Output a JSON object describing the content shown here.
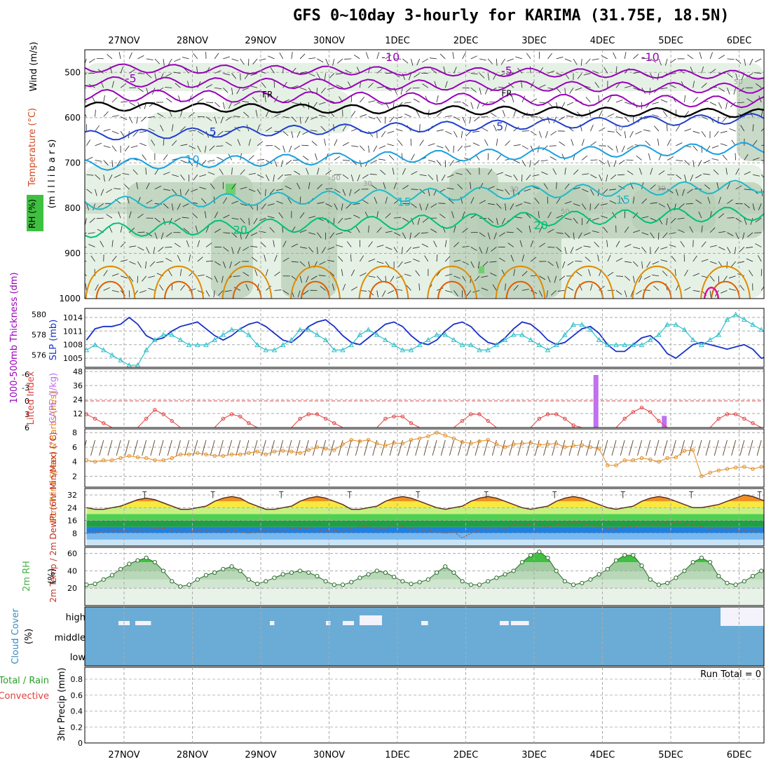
{
  "title": "GFS 0~10day 3-hourly for KARIMA (31.75E, 18.5N)",
  "dates": [
    "27NOV",
    "28NOV",
    "29NOV",
    "30NOV",
    "1DEC",
    "2DEC",
    "3DEC",
    "4DEC",
    "5DEC",
    "6DEC"
  ],
  "colors": {
    "grid": "#aaaaaa",
    "temp_cold": "#9900bb",
    "temp_mid": "#1f3fcf",
    "temp_warm": "#1aa0e0",
    "temp_hot": "#00c078",
    "temp_very_hot": "#e08a00",
    "rh_light": "#e3efe2",
    "rh_dark": "#b7cdb5",
    "slp": "#1830c8",
    "thickness": "#30c0c8",
    "lifted_index": "#e04040",
    "cape": "#c070f0",
    "wind_speed": "#e08a20",
    "rh2m": "#48b048",
    "cloud": "#6aacd6",
    "precip_grid": "#bbbbbb"
  },
  "chart_data": [
    {
      "panel": "upper-air",
      "type": "contour",
      "ylabel": "(m i l l i b a r s)",
      "side_labels": {
        "wind": "Wind (m/s)",
        "temperature": "Temperature (°C)",
        "rh": "RH (%)"
      },
      "y_ticks": [
        500,
        600,
        700,
        800,
        900,
        1000
      ],
      "ylim": [
        1000,
        450
      ],
      "temp_contour_labels": [
        {
          "text": "-10",
          "x_day": 3.9,
          "level": 475
        },
        {
          "text": "-10",
          "x_day": 7.7,
          "level": 475
        },
        {
          "text": "-5",
          "x_day": 0.1,
          "level": 522
        },
        {
          "text": "-5",
          "x_day": 5.6,
          "level": 505
        },
        {
          "text": "FR",
          "x_day": 2.1,
          "level": 555
        },
        {
          "text": "FR",
          "x_day": 5.6,
          "level": 553
        },
        {
          "text": "5",
          "x_day": 1.3,
          "level": 640
        },
        {
          "text": "5",
          "x_day": 5.5,
          "level": 628
        },
        {
          "text": "10",
          "x_day": 1.0,
          "level": 701
        },
        {
          "text": "15",
          "x_day": 4.1,
          "level": 795
        },
        {
          "text": "15",
          "x_day": 7.3,
          "level": 790
        },
        {
          "text": "20",
          "x_day": 1.7,
          "level": 857
        },
        {
          "text": "20",
          "x_day": 6.1,
          "level": 847
        }
      ],
      "rh_contour_labels": [
        "50",
        "30",
        "30",
        "30",
        "50",
        "50",
        "10"
      ]
    },
    {
      "panel": "slp-thickness",
      "type": "line",
      "left_label": "1000-500mb Thickness (dm)",
      "right_label": "SLP (mb)",
      "left_ticks": [
        576,
        578,
        580
      ],
      "right_ticks": [
        1005,
        1008,
        1011,
        1014
      ],
      "series": [
        {
          "name": "SLP (mb)",
          "values": [
            1009,
            1011.5,
            1012,
            1012,
            1012.5,
            1014,
            1012.5,
            1010,
            1009,
            1009.5,
            1011,
            1012,
            1012.5,
            1013,
            1011.5,
            1010,
            1009,
            1010,
            1011.5,
            1012.5,
            1013,
            1012,
            1010.5,
            1009,
            1008.5,
            1010,
            1012,
            1013,
            1013.5,
            1012,
            1010,
            1008.5,
            1008,
            1009.5,
            1011,
            1012.5,
            1013,
            1012,
            1010,
            1008.5,
            1008,
            1009,
            1011,
            1012.5,
            1013,
            1012,
            1010,
            1008.5,
            1008,
            1009.5,
            1011.5,
            1013,
            1012.5,
            1011,
            1009,
            1008,
            1008.5,
            1010,
            1011.5,
            1012,
            1010.5,
            1008,
            1006.5,
            1006.5,
            1008,
            1009.5,
            1010,
            1008.5,
            1006,
            1005,
            1006.5,
            1008,
            1008.5,
            1008,
            1007.5,
            1007,
            1007.5,
            1008,
            1007,
            1005,
            1005.5,
            1006.5,
            1007.5,
            1008
          ]
        },
        {
          "name": "Thickness (dm)",
          "values": [
            576.5,
            577,
            576.5,
            576,
            575.5,
            575,
            575,
            576.5,
            577.5,
            578,
            578,
            577.5,
            577,
            577,
            577,
            577.5,
            578,
            578.5,
            578.5,
            578,
            577,
            576.5,
            576.5,
            577,
            577.5,
            578.5,
            578.5,
            578,
            577.5,
            576.5,
            576.5,
            577,
            578,
            578.5,
            578,
            577.5,
            577,
            576.5,
            576.5,
            577,
            577.5,
            578,
            578,
            577.5,
            577,
            577,
            576.5,
            576.5,
            577,
            577.5,
            578,
            578,
            577.5,
            577,
            576.5,
            577,
            578,
            579,
            579,
            578.5,
            577.5,
            577,
            577,
            577,
            577,
            577,
            577.5,
            578,
            579,
            579,
            578.5,
            577.5,
            577,
            577.5,
            578,
            579.5,
            580,
            579.5,
            579,
            578.5,
            578,
            578,
            578.5,
            579
          ]
        }
      ]
    },
    {
      "panel": "lifted-cape",
      "type": "line",
      "left_label": "Lifted Index",
      "right_label": "CAPE (J/kg)",
      "left_ticks": [
        "-6",
        "-3",
        "0",
        "3",
        "6"
      ],
      "right_ticks": [
        12,
        24,
        36,
        48
      ],
      "lifted_index": [
        3,
        4,
        5,
        6,
        6,
        6,
        6,
        4,
        2,
        3,
        4.5,
        6,
        6,
        6,
        6,
        6,
        4,
        3,
        3.5,
        5,
        6,
        6,
        6,
        6,
        6,
        4,
        3,
        3,
        4,
        5,
        6,
        6,
        6,
        6,
        6,
        4,
        3.5,
        3.5,
        5,
        6,
        6,
        6,
        6,
        6,
        4.5,
        3,
        3,
        4.5,
        6,
        6,
        6,
        6,
        6,
        4,
        3,
        3,
        4,
        5.5,
        6,
        6,
        6,
        6,
        6,
        4,
        2.5,
        1.5,
        2.5,
        4.5,
        6,
        6,
        6,
        6,
        6,
        6,
        4,
        3,
        3,
        4,
        5,
        6,
        6,
        6,
        6,
        5.5
      ],
      "cape_bars": [
        {
          "day": 6.9,
          "value": 45
        },
        {
          "day": 7.9,
          "value": 10
        }
      ]
    },
    {
      "panel": "wind10m",
      "type": "line",
      "label": "10m Wind Speed & Barbs (m/s)",
      "y_ticks": [
        2,
        4,
        6,
        8
      ],
      "values": [
        4.2,
        4,
        4.2,
        4.2,
        4.5,
        4.8,
        4.6,
        4.5,
        4.2,
        4.2,
        4.5,
        5,
        5,
        5.2,
        5,
        4.8,
        4.8,
        5,
        5,
        5.2,
        5.4,
        5,
        5.4,
        5.5,
        5.4,
        5.2,
        5.6,
        6,
        5.8,
        5.6,
        6.4,
        7,
        6.8,
        7,
        6.5,
        6.2,
        6.6,
        6.5,
        7,
        7.2,
        7.5,
        8,
        7.6,
        7.2,
        6.7,
        6.5,
        6.8,
        7,
        6.4,
        6,
        6.4,
        6.5,
        6.6,
        6.3,
        6.4,
        6.5,
        6,
        6.2,
        6.3,
        6,
        5.8,
        3.5,
        3.5,
        4.2,
        4.2,
        4.5,
        4.3,
        4,
        4.5,
        4.6,
        5.5,
        5.6,
        2,
        2.5,
        2.8,
        3,
        3.2,
        3.3,
        3,
        3.3,
        3.3,
        2.3,
        1.5,
        2.5,
        3.5,
        4,
        3.2,
        3.3,
        3.8
      ]
    },
    {
      "panel": "temp2m",
      "type": "area",
      "label": "2m Temp / 2m DewPt (6hr Min/Max) (°C)",
      "y_ticks": [
        8,
        16,
        24,
        32
      ],
      "temperature": [
        24,
        23,
        23,
        24,
        25,
        27,
        29,
        30,
        29,
        27,
        25,
        23,
        23,
        24,
        25,
        28,
        30,
        31,
        30,
        27,
        25,
        23,
        23,
        24,
        25,
        28,
        30,
        31,
        30,
        28,
        26,
        23,
        23,
        24,
        25,
        28,
        30,
        31,
        30,
        28,
        26,
        24,
        23,
        24,
        25,
        28,
        30,
        31,
        30,
        28,
        26,
        24,
        23,
        24,
        25,
        28,
        30,
        31,
        30,
        28,
        26,
        24,
        23,
        24,
        25,
        28,
        30,
        31,
        30,
        28,
        26,
        24,
        24,
        25,
        26,
        28,
        30,
        32,
        31,
        29,
        27,
        25,
        25,
        26,
        27,
        28
      ],
      "dewpoint": [
        8,
        8,
        9,
        10,
        10,
        9,
        10,
        10,
        11,
        11,
        10,
        9,
        9,
        10,
        10,
        10,
        9,
        10,
        9,
        8,
        9,
        10,
        10,
        10,
        11,
        11,
        11,
        10,
        10,
        10,
        9,
        11,
        12,
        12,
        11,
        11,
        13,
        12,
        11,
        10,
        10,
        9,
        8,
        9,
        5,
        8,
        10,
        11,
        10,
        11,
        13,
        14,
        13,
        13,
        12,
        13,
        14,
        15,
        14,
        13,
        12,
        11,
        11,
        12,
        12,
        13,
        13,
        14,
        15,
        15,
        14,
        13,
        12,
        11,
        10,
        11,
        10,
        10,
        10,
        9,
        10,
        7,
        7,
        7,
        7,
        6
      ],
      "error_bar_days": [
        0.3,
        1.3,
        2.3,
        3.3,
        4.3,
        5.3,
        6.3,
        7.3,
        8.3,
        9.3
      ]
    },
    {
      "panel": "rh2m",
      "type": "area",
      "label": "2m RH (%)",
      "y_ticks": [
        20,
        40,
        60
      ],
      "values": [
        24,
        25,
        30,
        35,
        42,
        48,
        52,
        55,
        50,
        40,
        28,
        22,
        24,
        30,
        35,
        38,
        42,
        45,
        40,
        30,
        25,
        28,
        32,
        36,
        38,
        40,
        38,
        34,
        28,
        24,
        24,
        27,
        32,
        36,
        40,
        38,
        33,
        28,
        25,
        27,
        30,
        38,
        45,
        38,
        28,
        24,
        24,
        28,
        32,
        36,
        40,
        50,
        58,
        62,
        55,
        40,
        28,
        24,
        26,
        30,
        36,
        42,
        52,
        58,
        58,
        46,
        30,
        24,
        26,
        32,
        40,
        50,
        55,
        50,
        34,
        26,
        24,
        28,
        34,
        40,
        44,
        45,
        40,
        30,
        22
      ]
    },
    {
      "panel": "cloud",
      "type": "bar",
      "label": "Cloud Cover (%)",
      "levels": [
        "high",
        "middle",
        "low"
      ],
      "high_cloud": [
        [
          0.6,
          0.5
        ],
        [
          0.9,
          0.7
        ],
        [
          3.3,
          0.2
        ],
        [
          4.3,
          0.2
        ],
        [
          4.6,
          0.5
        ],
        [
          4.9,
          1.0
        ],
        [
          5.1,
          0.5
        ],
        [
          6.0,
          0.3
        ],
        [
          7.4,
          0.4
        ],
        [
          7.6,
          0.8
        ],
        [
          11.5,
          0.6
        ],
        [
          11.8,
          0.3
        ],
        [
          12.1,
          3.0
        ]
      ]
    },
    {
      "panel": "precip",
      "type": "bar",
      "label": "3hr Precip (mm)",
      "legend": [
        "Total / Rain",
        "Convective"
      ],
      "run_total": "Run Total = 0",
      "y_ticks": [
        "0",
        "0.2",
        "0.4",
        "0.6",
        "0.8"
      ],
      "values": []
    }
  ]
}
